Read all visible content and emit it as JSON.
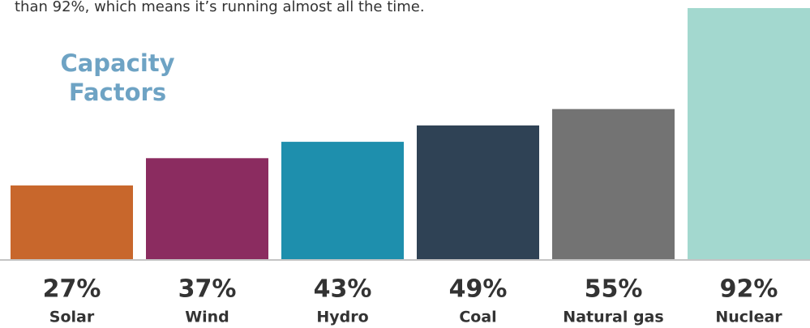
{
  "intro": "than 92%, which means it’s running almost all the time.",
  "chart_data": {
    "type": "bar",
    "title": "Capacity Factors",
    "categories": [
      "Solar",
      "Wind",
      "Hydro",
      "Coal",
      "Natural gas",
      "Nuclear"
    ],
    "values": [
      27,
      37,
      43,
      49,
      55,
      92
    ],
    "value_labels": [
      "27%",
      "37%",
      "43%",
      "49%",
      "55%",
      "92%"
    ],
    "colors": [
      "#c8672c",
      "#8b2c60",
      "#1e8fad",
      "#2f4255",
      "#737373",
      "#a3d8cf"
    ]
  }
}
